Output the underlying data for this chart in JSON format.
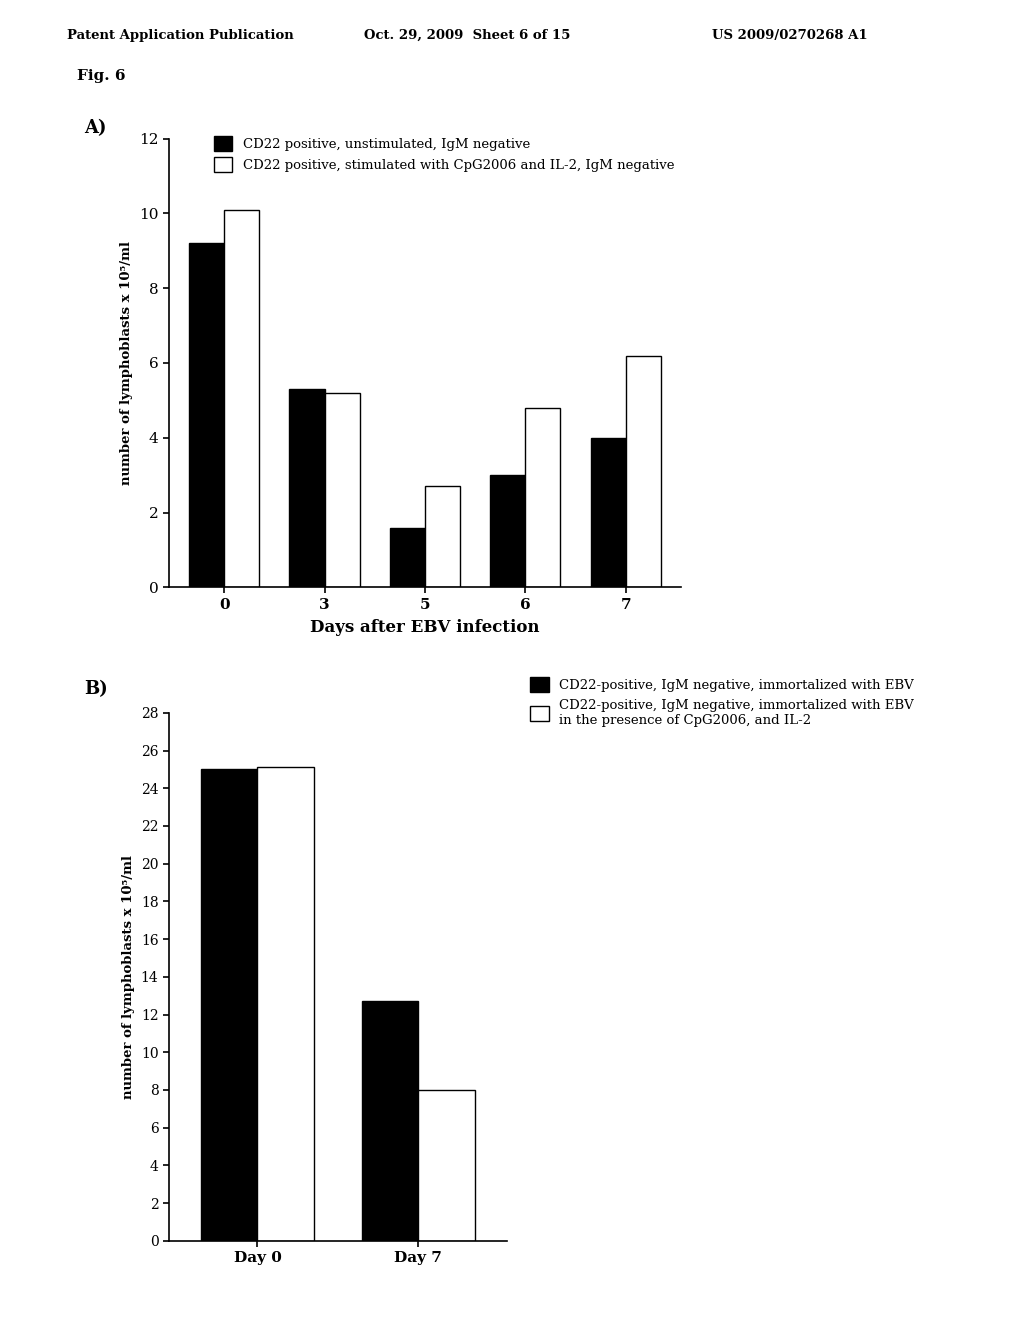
{
  "header_left": "Patent Application Publication",
  "header_mid": "Oct. 29, 2009  Sheet 6 of 15",
  "header_right": "US 2009/0270268 A1",
  "fig_label": "Fig. 6",
  "panel_A": {
    "label": "A)",
    "days": [
      0,
      3,
      5,
      6,
      7
    ],
    "black_values": [
      9.2,
      5.3,
      1.6,
      3.0,
      4.0
    ],
    "white_values": [
      10.1,
      5.2,
      2.7,
      4.8,
      6.2
    ],
    "ylim": [
      0,
      12
    ],
    "yticks": [
      0,
      2,
      4,
      6,
      8,
      10,
      12
    ],
    "xlabel": "Days after EBV infection",
    "ylabel": "number of lymphoblasts x 10⁵/ml",
    "legend1": "CD22 positive, unstimulated, IgM negative",
    "legend2": "CD22 positive, stimulated with CpG2006 and IL-2, IgM negative",
    "bar_width": 0.35
  },
  "panel_B": {
    "label": "B)",
    "days_labels": [
      "Day 0",
      "Day 7"
    ],
    "black_values": [
      25.0,
      12.7
    ],
    "white_values": [
      25.1,
      8.0
    ],
    "ylim": [
      0,
      28
    ],
    "yticks": [
      0,
      2,
      4,
      6,
      8,
      10,
      12,
      14,
      16,
      18,
      20,
      22,
      24,
      26,
      28
    ],
    "ylabel": "number of lymphoblasts x 10⁵/ml",
    "legend1": "CD22-positive, IgM negative, immortalized with EBV",
    "legend2": "CD22-positive, IgM negative, immortalized with EBV\nin the presence of CpG2006, and IL-2",
    "bar_width": 0.35
  },
  "bg_color": "#ffffff",
  "bar_black": "#000000",
  "bar_white": "#ffffff",
  "bar_edge": "#000000"
}
